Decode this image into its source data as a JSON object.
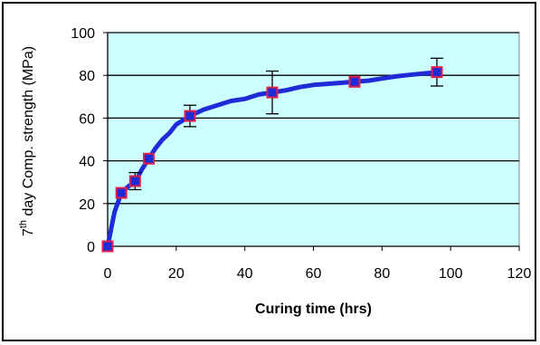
{
  "chart_data": {
    "type": "line",
    "xlabel": "Curing time (hrs)",
    "ylabel": {
      "prefix": "7",
      "superscript": "th",
      "rest": " day Comp. strength (MPa)"
    },
    "xlim": [
      0,
      120
    ],
    "ylim": [
      0,
      100
    ],
    "xticks": [
      0,
      20,
      40,
      60,
      80,
      100,
      120
    ],
    "yticks": [
      0,
      20,
      40,
      60,
      80,
      100
    ],
    "grid": "horizontal",
    "legend": "none",
    "colors": {
      "plot_background": "#ccffff",
      "line": "#1f2bd6",
      "marker_fill": "#1f2bd6",
      "marker_edge": "#e0204a",
      "gridline": "#000000"
    },
    "series": [
      {
        "kind": "fitted-curve",
        "x": [
          0,
          2,
          4,
          6,
          8,
          10,
          12,
          14,
          16,
          18,
          20,
          24,
          28,
          32,
          36,
          40,
          44,
          48,
          52,
          56,
          60,
          64,
          68,
          72,
          76,
          80,
          84,
          88,
          92,
          96
        ],
        "values": [
          0,
          16,
          25,
          28,
          30,
          36,
          41,
          46,
          50,
          53,
          57,
          61,
          64,
          66,
          68,
          69,
          71,
          72,
          73,
          74.5,
          75.5,
          76,
          76.5,
          77,
          77.5,
          78.5,
          79.5,
          80.2,
          80.8,
          81.5
        ]
      },
      {
        "kind": "measured-points",
        "x": [
          0,
          4,
          8,
          12,
          24,
          48,
          72,
          96
        ],
        "values": [
          0,
          25,
          30.5,
          41,
          61,
          72,
          77,
          81.5
        ],
        "error": [
          0,
          0,
          4,
          0,
          5,
          10,
          0,
          6.5
        ]
      }
    ]
  }
}
